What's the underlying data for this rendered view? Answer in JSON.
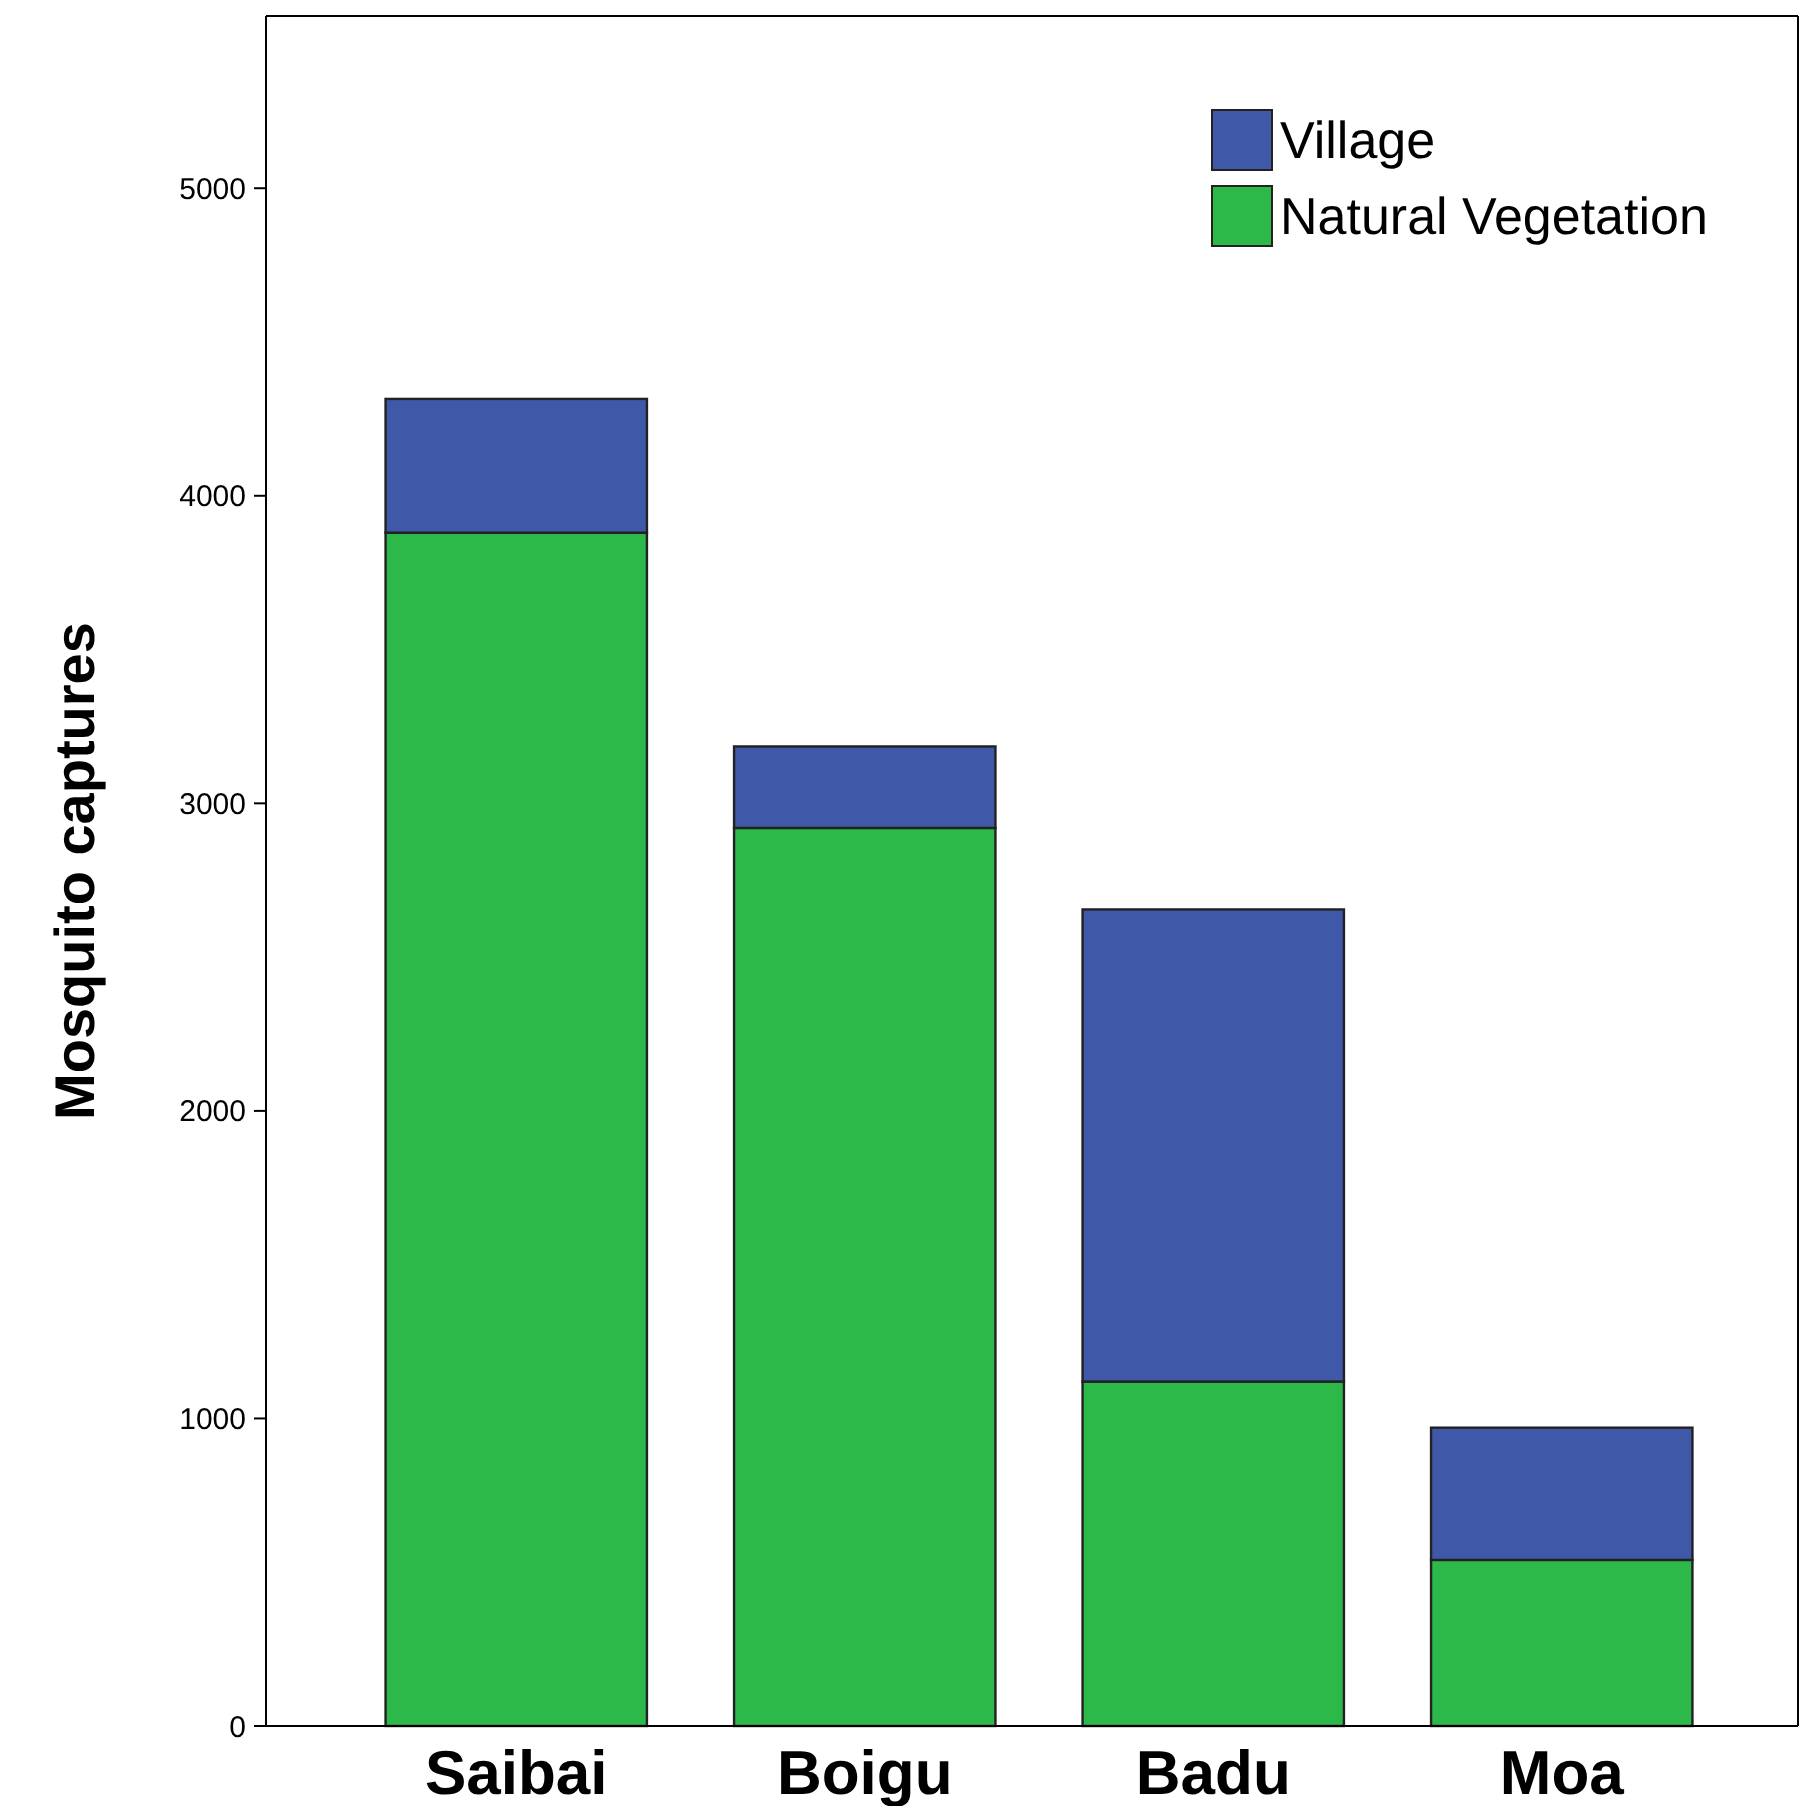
{
  "chart_data": {
    "type": "bar",
    "stacked": true,
    "ylabel": "Mosquito captures",
    "categories": [
      "Saibai",
      "Boigu",
      "Badu",
      "Moa"
    ],
    "series": [
      {
        "name": "Natural Vegetation",
        "color": "#2db84a",
        "values": [
          3880,
          2920,
          1120,
          540
        ]
      },
      {
        "name": "Village",
        "color": "#3f59a8",
        "values": [
          435,
          265,
          1535,
          430
        ]
      }
    ],
    "ylim": [
      0,
      5560
    ],
    "yticks": [
      0,
      1000,
      2000,
      3000,
      4000,
      5000
    ],
    "grid": false,
    "legend": "top right"
  }
}
